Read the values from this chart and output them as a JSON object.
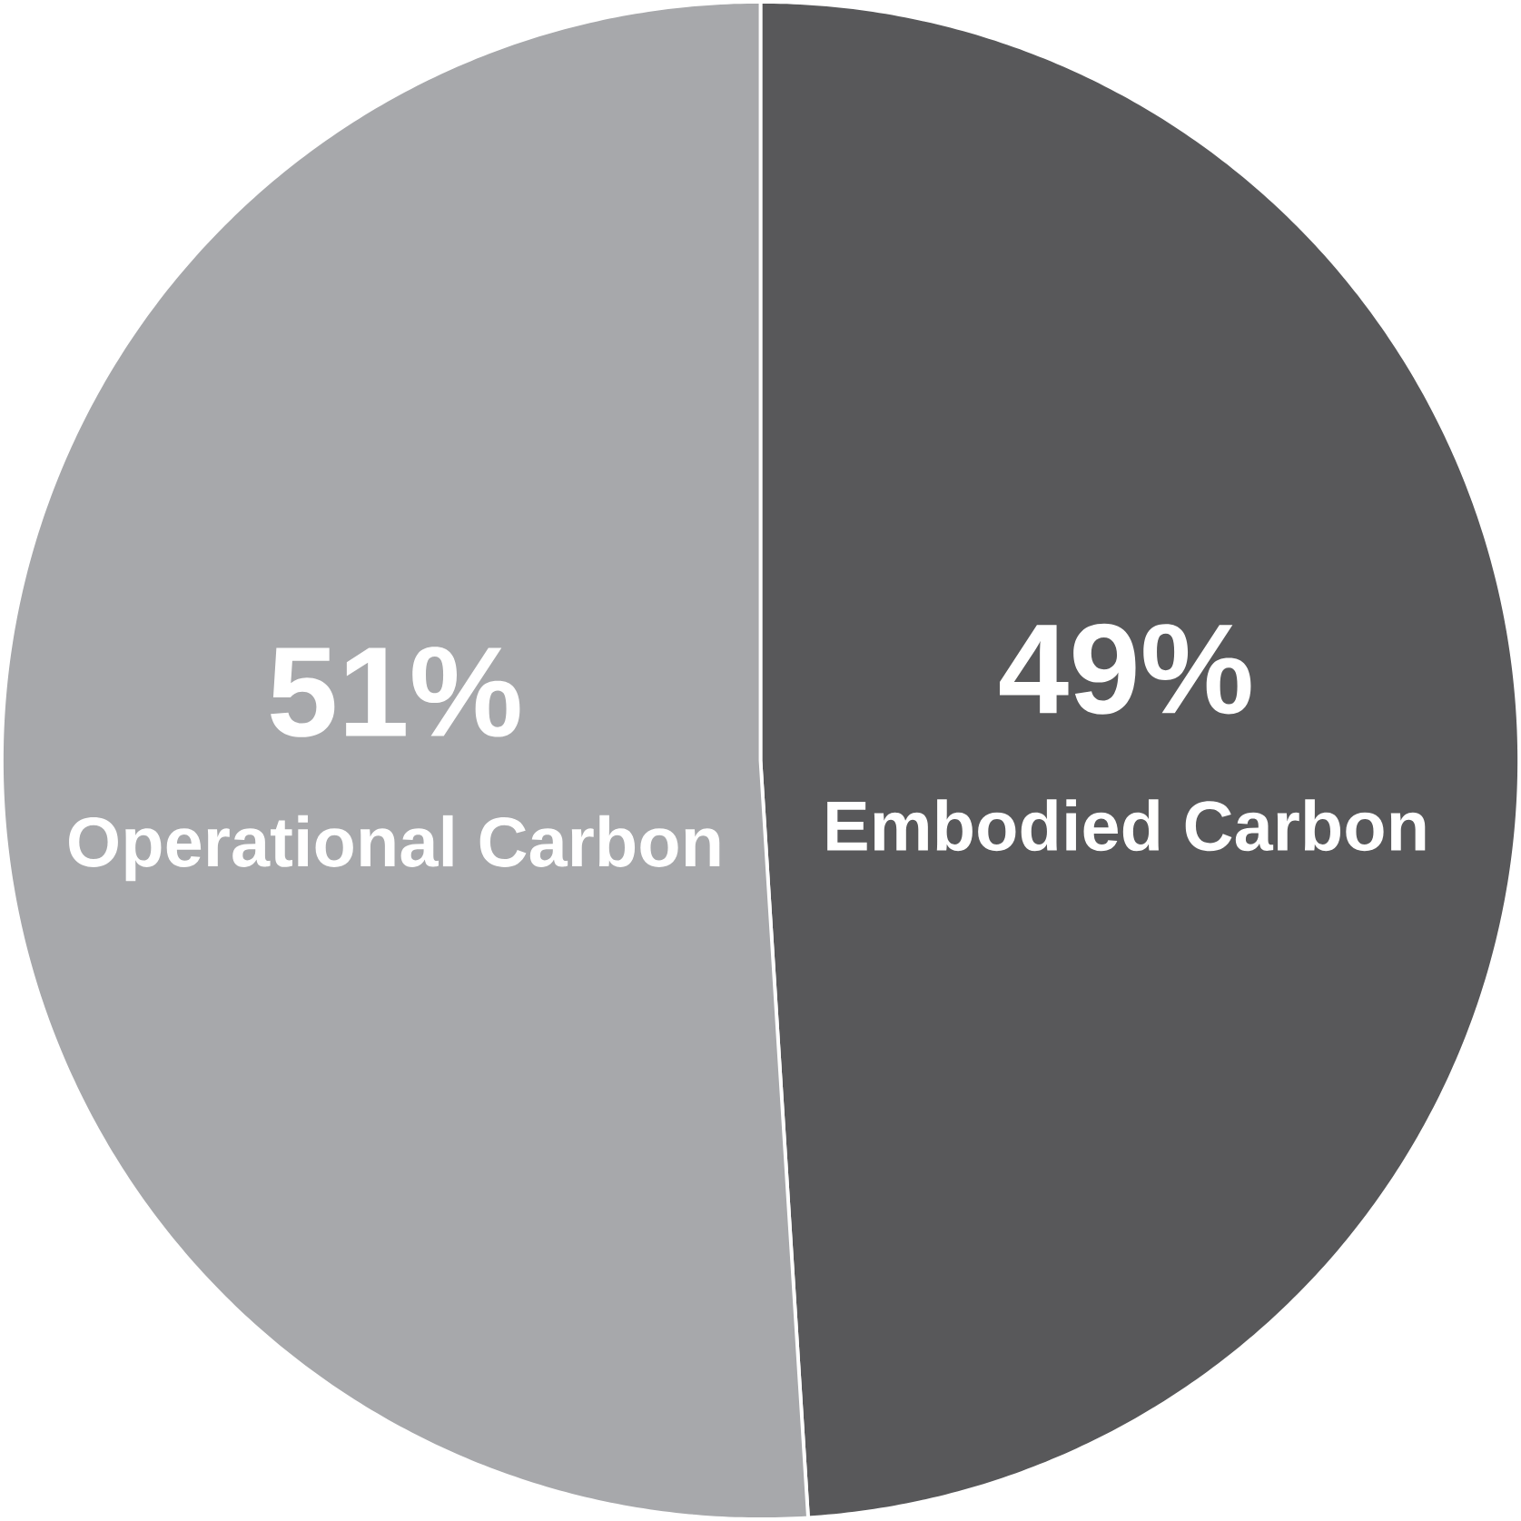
{
  "chart_data": {
    "type": "pie",
    "categories": [
      "Embodied Carbon",
      "Operational Carbon"
    ],
    "values": [
      49,
      51
    ],
    "value_labels": [
      "49%",
      "51%"
    ],
    "colors": [
      "#58585a",
      "#a7a8ab"
    ]
  }
}
